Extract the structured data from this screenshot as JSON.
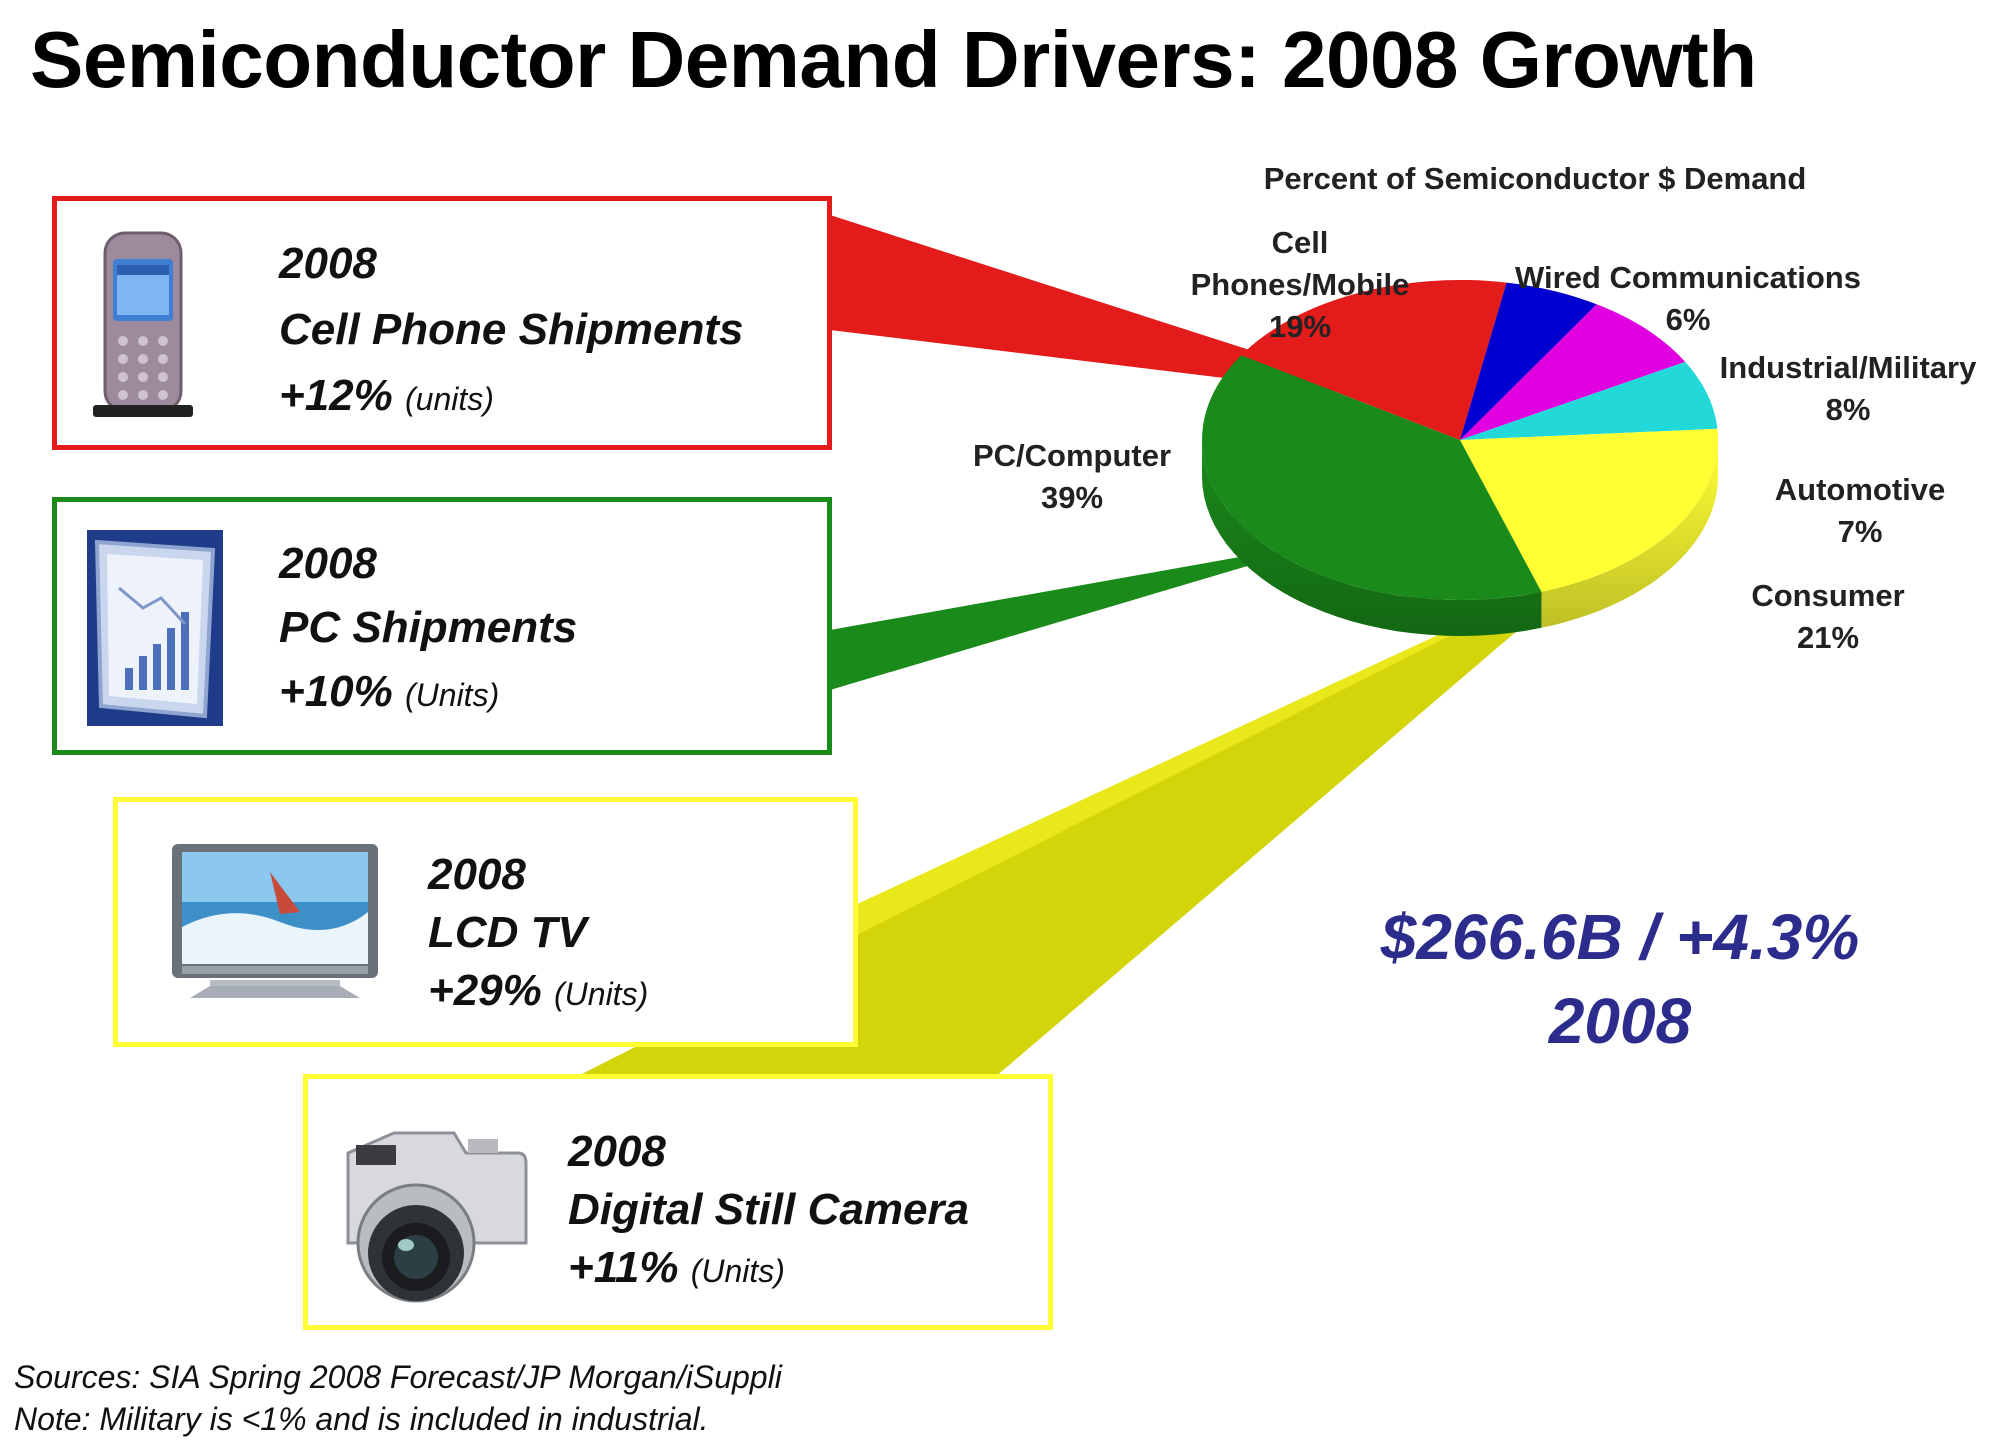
{
  "title": "Semiconductor Demand Drivers:  2008 Growth",
  "colors": {
    "red": "#e31b1b",
    "green": "#1a8a1a",
    "yellow": "#ffff33",
    "blue": "#0000d0",
    "magenta": "#e000e0",
    "cyan": "#22d8d8",
    "navy_text": "#2c2c8c"
  },
  "cards": [
    {
      "year": "2008",
      "product": "Cell Phone Shipments",
      "growth": "+12%",
      "unit": "(units)",
      "icon": "cell-phone-icon",
      "border": "#e31b1b"
    },
    {
      "year": "2008",
      "product": "PC Shipments",
      "growth": "+10%",
      "unit": "(Units)",
      "icon": "pc-screen-icon",
      "border": "#1a8a1a"
    },
    {
      "year": "2008",
      "product": "LCD TV",
      "growth": "+29%",
      "unit": "(Units)",
      "icon": "lcd-tv-icon",
      "border": "#ffff33"
    },
    {
      "year": "2008",
      "product": "Digital Still Camera",
      "growth": "+11%",
      "unit": "(Units)",
      "icon": "camera-icon",
      "border": "#ffff33"
    }
  ],
  "chart_data": {
    "type": "pie",
    "title": "Percent of Semiconductor $ Demand",
    "slices": [
      {
        "label": "Cell Phones/Mobile",
        "value": 19,
        "display": "19%",
        "color": "#e31b1b"
      },
      {
        "label": "Wired Communications",
        "value": 6,
        "display": "6%",
        "color": "#0000d0"
      },
      {
        "label": "Industrial/Military",
        "value": 8,
        "display": "8%",
        "color": "#e000e0"
      },
      {
        "label": "Automotive",
        "value": 7,
        "display": "7%",
        "color": "#22d8d8"
      },
      {
        "label": "Consumer",
        "value": 21,
        "display": "21%",
        "color": "#ffff33"
      },
      {
        "label": "PC/Computer",
        "value": 39,
        "display": "39%",
        "color": "#1a8a1a"
      }
    ],
    "label_lines": {
      "Cell Phones/Mobile": [
        "Cell",
        "Phones/Mobile"
      ],
      "Wired Communications": [
        "Wired Communications"
      ],
      "Industrial/Military": [
        "Industrial/Military"
      ],
      "Automotive": [
        "Automotive"
      ],
      "Consumer": [
        "Consumer"
      ],
      "PC/Computer": [
        "PC/Computer"
      ]
    }
  },
  "total": {
    "line1": "$266.6B / +4.3%",
    "line2": "2008"
  },
  "sources": {
    "line1": "Sources: SIA Spring 2008 Forecast/JP Morgan/iSuppli",
    "line2": "Note: Military  is <1% and is included in industrial."
  }
}
